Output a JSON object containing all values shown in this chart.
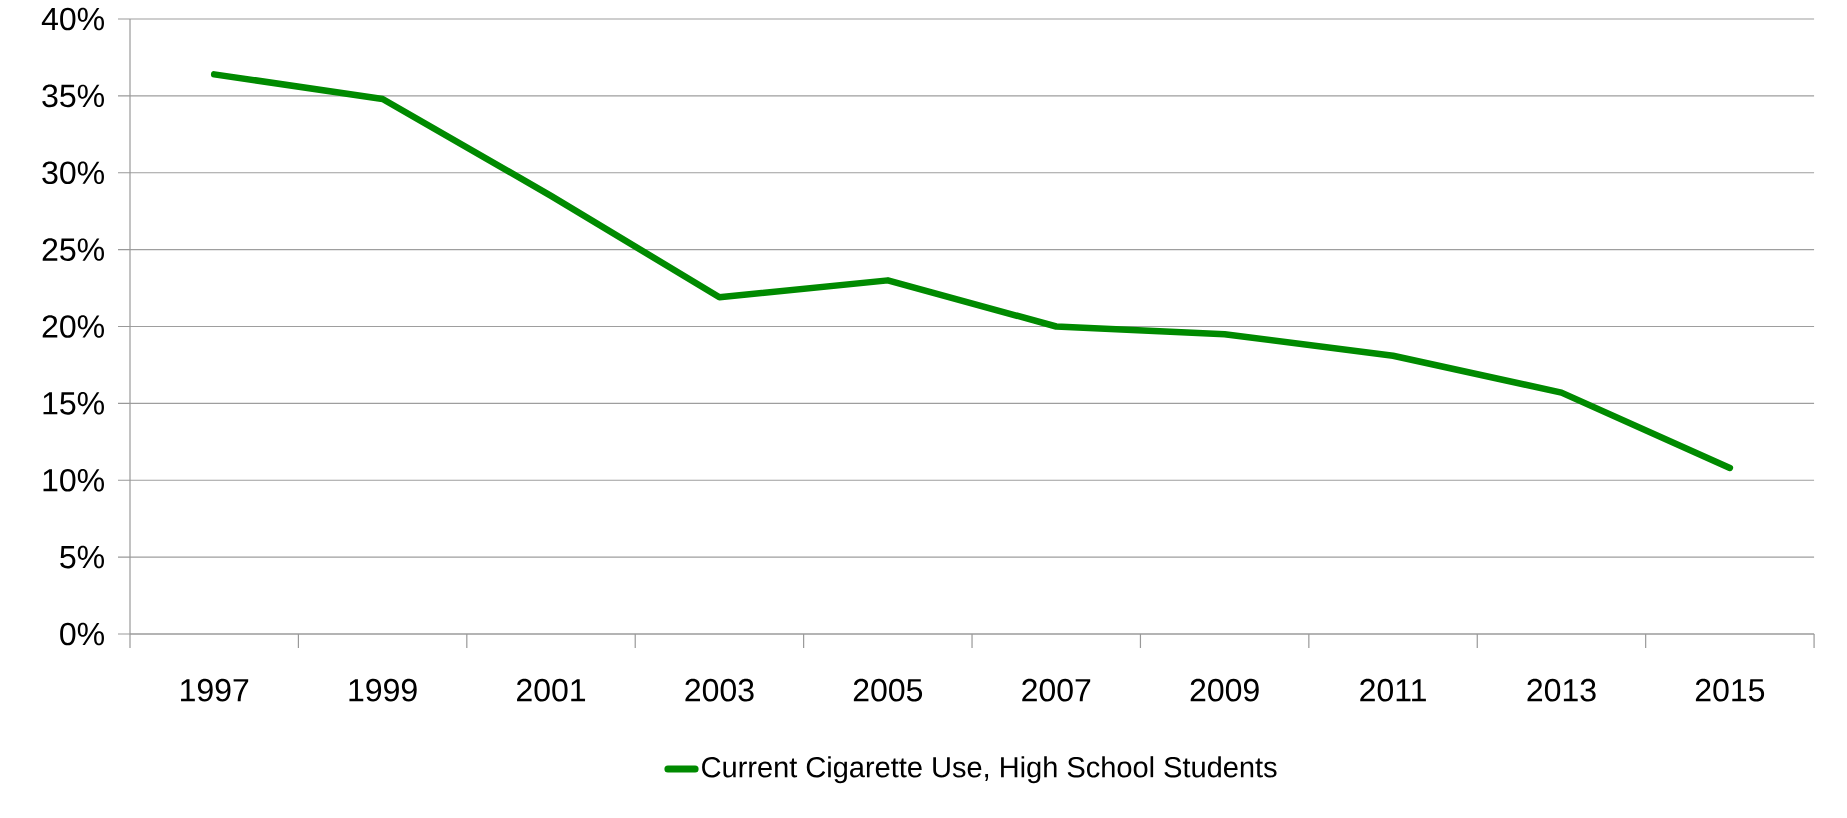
{
  "chart_data": {
    "type": "line",
    "categories": [
      "1997",
      "1999",
      "2001",
      "2003",
      "2005",
      "2007",
      "2009",
      "2011",
      "2013",
      "2015"
    ],
    "series": [
      {
        "name": "Current Cigarette Use, High School Students",
        "color": "#008a00",
        "values": [
          36.4,
          34.8,
          28.5,
          21.9,
          23.0,
          20.0,
          19.5,
          18.1,
          15.7,
          10.8
        ]
      }
    ],
    "ylim": [
      0,
      40
    ],
    "yticks": [
      {
        "value": 0,
        "label": "0%"
      },
      {
        "value": 5,
        "label": "5%"
      },
      {
        "value": 10,
        "label": "10%"
      },
      {
        "value": 15,
        "label": "15%"
      },
      {
        "value": 20,
        "label": "20%"
      },
      {
        "value": 25,
        "label": "25%"
      },
      {
        "value": 30,
        "label": "30%"
      },
      {
        "value": 35,
        "label": "35%"
      },
      {
        "value": 40,
        "label": "40%"
      }
    ],
    "grid": "y",
    "legend": "bottom",
    "marker": "none",
    "line_style": "solid"
  }
}
